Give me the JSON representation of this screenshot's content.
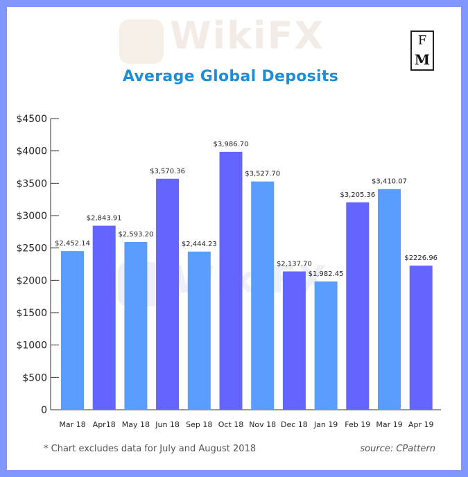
{
  "chart_data": {
    "type": "bar",
    "title": "Average Global Deposits",
    "categories": [
      "Mar 18",
      "Apr18",
      "May 18",
      "Jun 18",
      "Sep 18",
      "Oct 18",
      "Nov 18",
      "Dec 18",
      "Jan 19",
      "Feb 19",
      "Mar 19",
      "Apr 19"
    ],
    "values": [
      2452.14,
      2843.91,
      2593.2,
      3570.36,
      2444.23,
      3986.7,
      3527.7,
      2137.7,
      1982.45,
      3205.36,
      3410.07,
      2226.96
    ],
    "data_labels": [
      "$2,452.14",
      "$2,843.91",
      "$2,593.20",
      "$3,570.36",
      "$2,444.23",
      "$3,986.70",
      "$3,527.70",
      "$2,137.70",
      "$1,982.45",
      "$3,205.36",
      "$3,410.07",
      "$2226.96"
    ],
    "bar_colors": [
      "#5b9dff",
      "#6464ff",
      "#5b9dff",
      "#6464ff",
      "#5b9dff",
      "#6464ff",
      "#5b9dff",
      "#6464ff",
      "#5b9dff",
      "#6464ff",
      "#5b9dff",
      "#6464ff"
    ],
    "ylim": [
      0,
      4500
    ],
    "yticks": [
      0,
      500,
      1000,
      1500,
      2000,
      2500,
      3000,
      3500,
      4000,
      4500
    ],
    "ytick_labels": [
      "0",
      "$500",
      "$1000",
      "$1500",
      "$2000",
      "$2500",
      "$3000",
      "$3500",
      "$4000",
      "$4500"
    ],
    "xlabel": "",
    "ylabel": "",
    "grid": false,
    "legend": "none"
  },
  "logo": {
    "line1": "F",
    "line2": "M"
  },
  "watermark": "WikiFX",
  "footnote": "* Chart excludes data for July and August 2018",
  "source": "source: CPattern",
  "colors": {
    "frame": "#7f97ff",
    "title": "#1e8fd6",
    "bar_light": "#5b9dff",
    "bar_dark": "#6464ff"
  }
}
